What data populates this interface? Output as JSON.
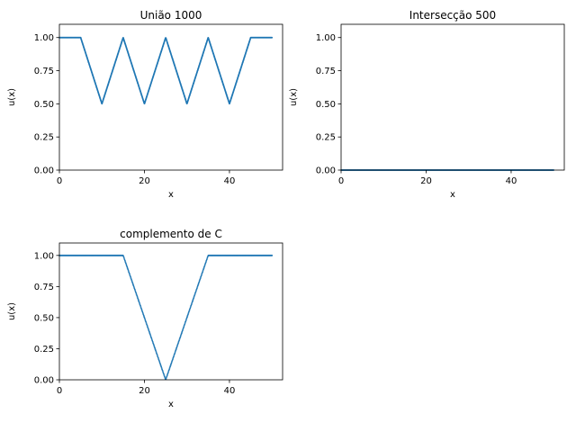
{
  "figure": {
    "background": "#ffffff",
    "line_color": "#1f77b4"
  },
  "chart_data": [
    {
      "type": "scatter",
      "title": "União 1000",
      "xlabel": "x",
      "ylabel": "u(x)",
      "xlim": [
        0,
        52.5
      ],
      "ylim": [
        0,
        1.1
      ],
      "xticks": [
        0,
        20,
        40
      ],
      "xtick_labels": [
        "0",
        "20",
        "40"
      ],
      "yticks": [
        0,
        0.25,
        0.5,
        0.75,
        1.0
      ],
      "ytick_labels": [
        "0.00",
        "0.25",
        "0.50",
        "0.75",
        "1.00"
      ],
      "grid": false,
      "point_count": 1000,
      "series": [
        {
          "x": [
            0,
            5,
            10,
            15,
            20,
            25,
            30,
            35,
            40,
            45,
            50
          ],
          "y": [
            1.0,
            1.0,
            0.5,
            1.0,
            0.5,
            1.0,
            0.5,
            1.0,
            0.5,
            1.0,
            1.0
          ]
        }
      ]
    },
    {
      "type": "scatter",
      "title": "Intersecção 500",
      "xlabel": "x",
      "ylabel": "u(x)",
      "xlim": [
        0,
        52.5
      ],
      "ylim": [
        0,
        1.1
      ],
      "xticks": [
        0,
        20,
        40
      ],
      "xtick_labels": [
        "0",
        "20",
        "40"
      ],
      "yticks": [
        0,
        0.25,
        0.5,
        0.75,
        1.0
      ],
      "ytick_labels": [
        "0.00",
        "0.25",
        "0.50",
        "0.75",
        "1.00"
      ],
      "grid": false,
      "point_count": 500,
      "series": [
        {
          "x": [
            0,
            50
          ],
          "y": [
            0,
            0
          ]
        }
      ]
    },
    {
      "type": "scatter",
      "title": "complemento de C",
      "xlabel": "x",
      "ylabel": "u(x)",
      "xlim": [
        0,
        52.5
      ],
      "ylim": [
        0,
        1.1
      ],
      "xticks": [
        0,
        20,
        40
      ],
      "xtick_labels": [
        "0",
        "20",
        "40"
      ],
      "yticks": [
        0,
        0.25,
        0.5,
        0.75,
        1.0
      ],
      "ytick_labels": [
        "0.00",
        "0.25",
        "0.50",
        "0.75",
        "1.00"
      ],
      "grid": false,
      "point_count": 500,
      "series": [
        {
          "x": [
            0,
            15,
            25,
            35,
            50
          ],
          "y": [
            1.0,
            1.0,
            0.0,
            1.0,
            1.0
          ]
        }
      ]
    }
  ]
}
